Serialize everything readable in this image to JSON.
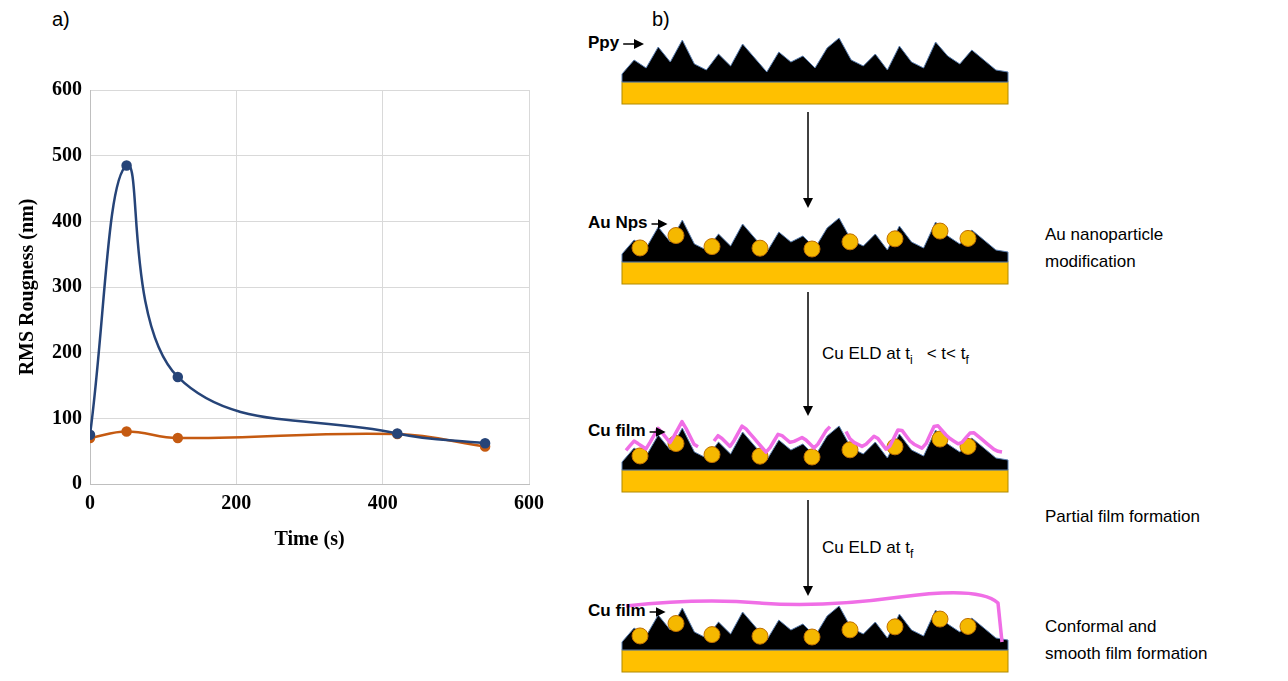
{
  "panel_labels": [
    "a)",
    "b)"
  ],
  "chart_data": {
    "type": "line",
    "x_label": "Time (s)",
    "y_label": "RMS Rougness (nm)",
    "x": [
      0,
      50,
      120,
      420,
      540
    ],
    "series": [
      {
        "color": "#264478",
        "values": [
          75,
          485,
          163,
          77,
          62
        ]
      },
      {
        "color": "#c55a11",
        "values": [
          70,
          80,
          70,
          76,
          57
        ]
      }
    ],
    "xlim": [
      0,
      600
    ],
    "xticks": [
      0,
      200,
      400,
      600
    ],
    "ylim": [
      0,
      600
    ],
    "yticks": [
      0,
      100,
      200,
      300,
      400,
      500,
      600
    ],
    "grid": true,
    "marker": "circle",
    "line_style": "solid"
  },
  "diagram": {
    "stages": [
      {
        "left_label": "Ppy"
      },
      {
        "left_label": "Au Nps",
        "right_label": [
          "Au nanoparticle",
          "modification"
        ]
      },
      {
        "left_label": "Cu film",
        "right_label": [
          "Partial film formation"
        ],
        "arrow_label": [
          {
            "text": "Cu ELD at t"
          },
          {
            "text": "i",
            "sub": true
          },
          {
            "text": "   < t< t"
          },
          {
            "text": "f",
            "sub": true
          }
        ]
      },
      {
        "left_label": "Cu film",
        "right_label": [
          "Conformal and",
          "smooth film formation"
        ],
        "arrow_label": [
          {
            "text": "Cu ELD at t"
          },
          {
            "text": "f",
            "sub": true
          }
        ]
      }
    ]
  }
}
